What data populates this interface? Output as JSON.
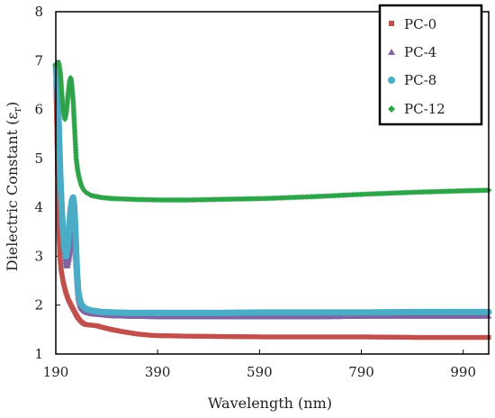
{
  "chart_data": {
    "type": "scatter",
    "xlabel": "Wavelength (nm)",
    "ylabel": "Dielectric Constant (ε",
    "ylabel_sub": "r",
    "ylabel_close": ")",
    "xlim": [
      190,
      1040
    ],
    "ylim": [
      1,
      8
    ],
    "xticks": [
      190,
      390,
      590,
      790,
      990
    ],
    "yticks": [
      1,
      2,
      3,
      4,
      5,
      6,
      7,
      8
    ],
    "grid": false,
    "legend_position": "top-right",
    "series": [
      {
        "name": "PC-0",
        "color": "#c0504d",
        "marker": "square",
        "points": [
          [
            190,
            6.6
          ],
          [
            192,
            5.6
          ],
          [
            194,
            4.4
          ],
          [
            196,
            3.5
          ],
          [
            198,
            3.0
          ],
          [
            200,
            2.75
          ],
          [
            205,
            2.45
          ],
          [
            210,
            2.25
          ],
          [
            215,
            2.1
          ],
          [
            220,
            2.0
          ],
          [
            225,
            1.9
          ],
          [
            230,
            1.8
          ],
          [
            235,
            1.72
          ],
          [
            240,
            1.66
          ],
          [
            245,
            1.62
          ],
          [
            250,
            1.6
          ],
          [
            260,
            1.59
          ],
          [
            270,
            1.58
          ],
          [
            280,
            1.55
          ],
          [
            300,
            1.5
          ],
          [
            320,
            1.46
          ],
          [
            350,
            1.41
          ],
          [
            380,
            1.38
          ],
          [
            420,
            1.37
          ],
          [
            500,
            1.36
          ],
          [
            600,
            1.35
          ],
          [
            700,
            1.35
          ],
          [
            800,
            1.35
          ],
          [
            900,
            1.34
          ],
          [
            1000,
            1.34
          ],
          [
            1040,
            1.34
          ]
        ]
      },
      {
        "name": "PC-4",
        "color": "#8064a2",
        "marker": "triangle",
        "points": [
          [
            190,
            6.8
          ],
          [
            193,
            6.4
          ],
          [
            196,
            5.5
          ],
          [
            199,
            4.5
          ],
          [
            202,
            3.8
          ],
          [
            205,
            3.3
          ],
          [
            208,
            3.0
          ],
          [
            210,
            2.8
          ],
          [
            213,
            2.8
          ],
          [
            216,
            2.95
          ],
          [
            219,
            3.15
          ],
          [
            222,
            3.4
          ],
          [
            224,
            3.5
          ],
          [
            226,
            3.4
          ],
          [
            228,
            3.1
          ],
          [
            230,
            2.75
          ],
          [
            232,
            2.4
          ],
          [
            234,
            2.15
          ],
          [
            237,
            2.0
          ],
          [
            240,
            1.93
          ],
          [
            245,
            1.88
          ],
          [
            250,
            1.85
          ],
          [
            260,
            1.82
          ],
          [
            280,
            1.8
          ],
          [
            300,
            1.78
          ],
          [
            340,
            1.77
          ],
          [
            400,
            1.76
          ],
          [
            500,
            1.76
          ],
          [
            600,
            1.76
          ],
          [
            700,
            1.76
          ],
          [
            800,
            1.77
          ],
          [
            900,
            1.77
          ],
          [
            1000,
            1.77
          ],
          [
            1040,
            1.77
          ]
        ]
      },
      {
        "name": "PC-8",
        "color": "#4bacc6",
        "marker": "circle",
        "points": [
          [
            190,
            6.9
          ],
          [
            193,
            6.5
          ],
          [
            196,
            5.6
          ],
          [
            199,
            4.6
          ],
          [
            202,
            3.9
          ],
          [
            205,
            3.4
          ],
          [
            208,
            3.1
          ],
          [
            210,
            3.0
          ],
          [
            213,
            3.15
          ],
          [
            216,
            3.55
          ],
          [
            219,
            3.95
          ],
          [
            222,
            4.15
          ],
          [
            224,
            4.2
          ],
          [
            226,
            4.05
          ],
          [
            228,
            3.65
          ],
          [
            230,
            3.1
          ],
          [
            232,
            2.6
          ],
          [
            234,
            2.3
          ],
          [
            237,
            2.12
          ],
          [
            240,
            2.02
          ],
          [
            245,
            1.96
          ],
          [
            250,
            1.92
          ],
          [
            260,
            1.89
          ],
          [
            280,
            1.86
          ],
          [
            300,
            1.85
          ],
          [
            340,
            1.84
          ],
          [
            400,
            1.84
          ],
          [
            500,
            1.84
          ],
          [
            600,
            1.85
          ],
          [
            700,
            1.85
          ],
          [
            800,
            1.85
          ],
          [
            900,
            1.86
          ],
          [
            1000,
            1.86
          ],
          [
            1040,
            1.86
          ]
        ]
      },
      {
        "name": "PC-12",
        "color": "#2ea34a",
        "marker": "diamond",
        "points": [
          [
            190,
            6.9
          ],
          [
            193,
            6.95
          ],
          [
            196,
            6.95
          ],
          [
            199,
            6.75
          ],
          [
            202,
            6.3
          ],
          [
            205,
            5.95
          ],
          [
            208,
            5.8
          ],
          [
            211,
            5.95
          ],
          [
            214,
            6.3
          ],
          [
            217,
            6.58
          ],
          [
            219,
            6.65
          ],
          [
            221,
            6.55
          ],
          [
            224,
            6.2
          ],
          [
            227,
            5.6
          ],
          [
            230,
            5.0
          ],
          [
            233,
            4.75
          ],
          [
            236,
            4.6
          ],
          [
            240,
            4.45
          ],
          [
            245,
            4.35
          ],
          [
            250,
            4.3
          ],
          [
            260,
            4.24
          ],
          [
            280,
            4.2
          ],
          [
            300,
            4.18
          ],
          [
            350,
            4.16
          ],
          [
            400,
            4.15
          ],
          [
            450,
            4.15
          ],
          [
            500,
            4.16
          ],
          [
            600,
            4.18
          ],
          [
            700,
            4.22
          ],
          [
            800,
            4.27
          ],
          [
            900,
            4.31
          ],
          [
            1000,
            4.34
          ],
          [
            1040,
            4.35
          ]
        ]
      }
    ]
  }
}
